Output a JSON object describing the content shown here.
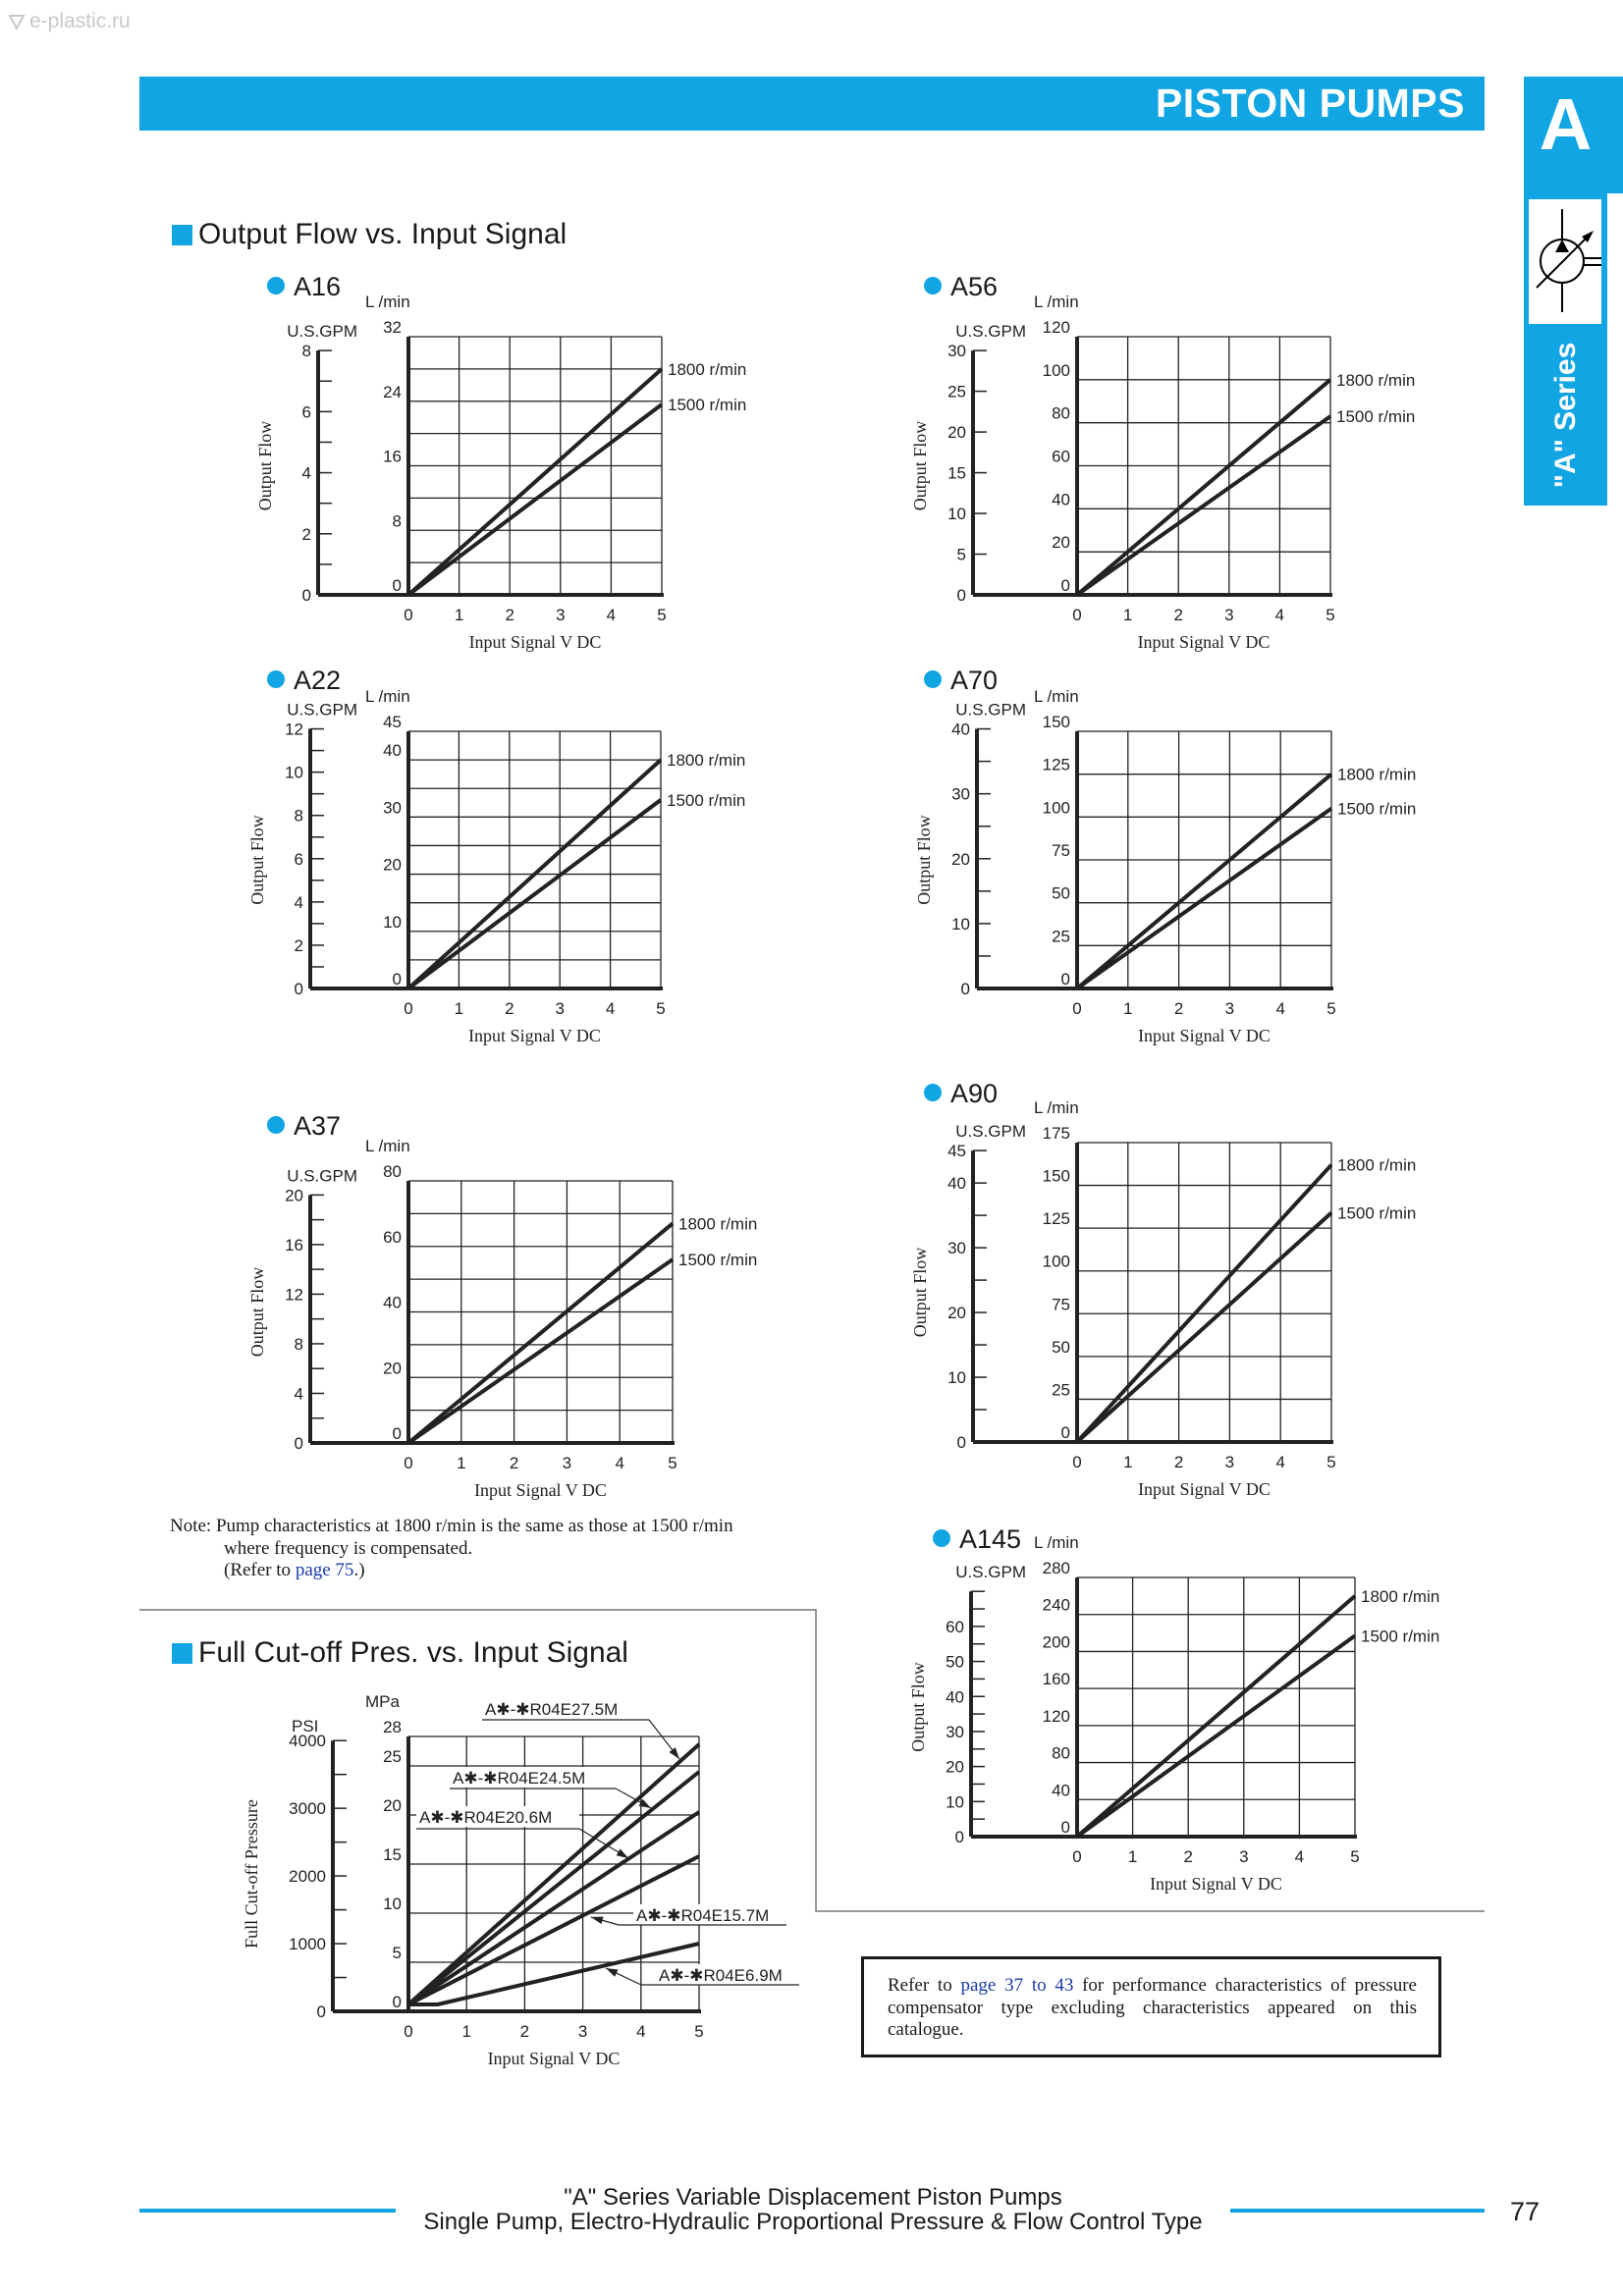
{
  "watermark": "e-plastic.ru",
  "header": {
    "title": "PISTON PUMPS"
  },
  "side_tab": {
    "letter": "A",
    "series": "\"A\" Series"
  },
  "sections": {
    "output_flow": "Output Flow vs. Input Signal",
    "cutoff": "Full Cut-off Pres. vs. Input Signal"
  },
  "note": {
    "line1": "Note: Pump characteristics at 1800 r/min is the same as those at 1500 r/min",
    "line2": "where frequency is compensated.",
    "line3_pre": "(Refer to ",
    "line3_link": "page 75",
    "line3_post": ".)"
  },
  "refer_box": {
    "pre": "Refer to ",
    "link1": "page 37",
    "mid": " to ",
    "link2": "43",
    "post": " for performance characteristics of pressure compensator type excluding characteristics appeared on this catalogue."
  },
  "footer": {
    "line1": "\"A\" Series Variable Displacement Piston Pumps",
    "line2": "Single Pump, Electro-Hydraulic Proportional Pressure & Flow Control Type",
    "page": "77"
  },
  "colors": {
    "accent": "#12a5e3",
    "ink": "#222222"
  },
  "chart_data": [
    {
      "type": "line",
      "title": "A16",
      "xlabel": "Input Signal V DC",
      "ylabel": "Output Flow",
      "y_unit": "L /min",
      "y2_unit": "U.S.GPM",
      "xlim": [
        0,
        5
      ],
      "x_ticks": [
        "0",
        "1",
        "2",
        "3",
        "4",
        "5"
      ],
      "ylim": [
        0,
        32
      ],
      "y_ticks": [
        "0",
        "8",
        "16",
        "24",
        "32"
      ],
      "y2_ticks": [
        "0",
        "2",
        "4",
        "6",
        "8"
      ],
      "grid": true,
      "series": [
        {
          "name": "1800 r/min",
          "points": [
            [
              0,
              0
            ],
            [
              5,
              28
            ]
          ]
        },
        {
          "name": "1500 r/min",
          "points": [
            [
              0,
              0
            ],
            [
              5,
              23.6
            ]
          ]
        }
      ]
    },
    {
      "type": "line",
      "title": "A56",
      "xlabel": "Input Signal V DC",
      "ylabel": "Output Flow",
      "y_unit": "L /min",
      "y2_unit": "U.S.GPM",
      "xlim": [
        0,
        5
      ],
      "x_ticks": [
        "0",
        "1",
        "2",
        "3",
        "4",
        "5"
      ],
      "ylim": [
        0,
        120
      ],
      "y_ticks": [
        "0",
        "20",
        "40",
        "60",
        "80",
        "100",
        "120"
      ],
      "y2_ticks": [
        "0",
        "5",
        "10",
        "15",
        "20",
        "25",
        "30"
      ],
      "grid": true,
      "series": [
        {
          "name": "1800 r/min",
          "points": [
            [
              0,
              0
            ],
            [
              5,
              100
            ]
          ]
        },
        {
          "name": "1500 r/min",
          "points": [
            [
              0,
              0
            ],
            [
              5,
              83
            ]
          ]
        }
      ]
    },
    {
      "type": "line",
      "title": "A22",
      "xlabel": "Input Signal V DC",
      "ylabel": "Output Flow",
      "y_unit": "L /min",
      "y2_unit": "U.S.GPM",
      "xlim": [
        0,
        5
      ],
      "x_ticks": [
        "0",
        "1",
        "2",
        "3",
        "4",
        "5"
      ],
      "ylim": [
        0,
        45
      ],
      "y_ticks": [
        "0",
        "10",
        "20",
        "30",
        "40",
        "45"
      ],
      "y2_ticks": [
        "0",
        "2",
        "4",
        "6",
        "8",
        "10",
        "12"
      ],
      "grid": true,
      "series": [
        {
          "name": "1800 r/min",
          "points": [
            [
              0,
              0
            ],
            [
              5,
              40
            ]
          ]
        },
        {
          "name": "1500 r/min",
          "points": [
            [
              0,
              0
            ],
            [
              5,
              33
            ]
          ]
        }
      ]
    },
    {
      "type": "line",
      "title": "A70",
      "xlabel": "Input Signal V DC",
      "ylabel": "Output Flow",
      "y_unit": "L /min",
      "y2_unit": "U.S.GPM",
      "xlim": [
        0,
        5
      ],
      "x_ticks": [
        "0",
        "1",
        "2",
        "3",
        "4",
        "5"
      ],
      "ylim": [
        0,
        150
      ],
      "y_ticks": [
        "0",
        "25",
        "50",
        "75",
        "100",
        "125",
        "150"
      ],
      "y2_ticks": [
        "0",
        "10",
        "20",
        "30",
        "40"
      ],
      "grid": true,
      "series": [
        {
          "name": "1800 r/min",
          "points": [
            [
              0,
              0
            ],
            [
              5,
              125
            ]
          ]
        },
        {
          "name": "1500 r/min",
          "points": [
            [
              0,
              0
            ],
            [
              5,
              105
            ]
          ]
        }
      ]
    },
    {
      "type": "line",
      "title": "A37",
      "xlabel": "Input Signal V DC",
      "ylabel": "Output Flow",
      "y_unit": "L /min",
      "y2_unit": "U.S.GPM",
      "xlim": [
        0,
        5
      ],
      "x_ticks": [
        "0",
        "1",
        "2",
        "3",
        "4",
        "5"
      ],
      "ylim": [
        0,
        80
      ],
      "y_ticks": [
        "0",
        "20",
        "40",
        "60",
        "80"
      ],
      "y2_ticks": [
        "0",
        "4",
        "8",
        "12",
        "16",
        "20"
      ],
      "grid": true,
      "series": [
        {
          "name": "1800 r/min",
          "points": [
            [
              0,
              0
            ],
            [
              5,
              67
            ]
          ]
        },
        {
          "name": "1500 r/min",
          "points": [
            [
              0,
              0
            ],
            [
              5,
              56
            ]
          ]
        }
      ]
    },
    {
      "type": "line",
      "title": "A90",
      "xlabel": "Input Signal V DC",
      "ylabel": "Output Flow",
      "y_unit": "L /min",
      "y2_unit": "U.S.GPM",
      "xlim": [
        0,
        5
      ],
      "x_ticks": [
        "0",
        "1",
        "2",
        "3",
        "4",
        "5"
      ],
      "ylim": [
        0,
        175
      ],
      "y_ticks": [
        "0",
        "25",
        "50",
        "75",
        "100",
        "125",
        "150",
        "175"
      ],
      "y2_ticks": [
        "0",
        "10",
        "20",
        "30",
        "40",
        "45"
      ],
      "grid": true,
      "series": [
        {
          "name": "1800 r/min",
          "points": [
            [
              0,
              0
            ],
            [
              5,
              162
            ]
          ]
        },
        {
          "name": "1500 r/min",
          "points": [
            [
              0,
              0
            ],
            [
              5,
              134
            ]
          ]
        }
      ]
    },
    {
      "type": "line",
      "title": "A145",
      "xlabel": "Input Signal V DC",
      "ylabel": "Output Flow",
      "y_unit": "L /min",
      "y2_unit": "U.S.GPM",
      "xlim": [
        0,
        5
      ],
      "x_ticks": [
        "0",
        "1",
        "2",
        "3",
        "4",
        "5"
      ],
      "ylim": [
        0,
        280
      ],
      "y_ticks": [
        "0",
        "40",
        "80",
        "120",
        "160",
        "200",
        "240",
        "280"
      ],
      "y2_ticks": [
        "0",
        "10",
        "20",
        "30",
        "40",
        "50",
        "60"
      ],
      "grid": true,
      "series": [
        {
          "name": "1800 r/min",
          "points": [
            [
              0,
              0
            ],
            [
              5,
              260
            ]
          ]
        },
        {
          "name": "1500 r/min",
          "points": [
            [
              0,
              0
            ],
            [
              5,
              217
            ]
          ]
        }
      ]
    },
    {
      "type": "line",
      "title": "",
      "xlabel": "Input Signal V DC",
      "ylabel": "Full Cut-off Pressure",
      "y_unit": "MPa",
      "y2_unit": "PSI",
      "xlim": [
        0,
        5
      ],
      "x_ticks": [
        "0",
        "1",
        "2",
        "3",
        "4",
        "5"
      ],
      "ylim": [
        0,
        28
      ],
      "y_ticks": [
        "0",
        "5",
        "10",
        "15",
        "20",
        "25",
        "28"
      ],
      "y2_ticks": [
        "0",
        "1000",
        "2000",
        "3000",
        "4000"
      ],
      "grid": true,
      "series": [
        {
          "name": "A✱-✱R04E27.5M",
          "points": [
            [
              0,
              0.7
            ],
            [
              5,
              27.2
            ]
          ]
        },
        {
          "name": "A✱-✱R04E24.5M",
          "points": [
            [
              0,
              0.7
            ],
            [
              5,
              24.4
            ]
          ]
        },
        {
          "name": "A✱-✱R04E20.6M",
          "points": [
            [
              0,
              0.7
            ],
            [
              5,
              20.3
            ]
          ]
        },
        {
          "name": "A✱-✱R04E15.7M",
          "points": [
            [
              0,
              0.7
            ],
            [
              5,
              15.8
            ]
          ]
        },
        {
          "name": "A✱-✱R04E6.9M",
          "points": [
            [
              0,
              0.7
            ],
            [
              0.5,
              0.7
            ],
            [
              5,
              6.9
            ]
          ]
        }
      ]
    }
  ]
}
